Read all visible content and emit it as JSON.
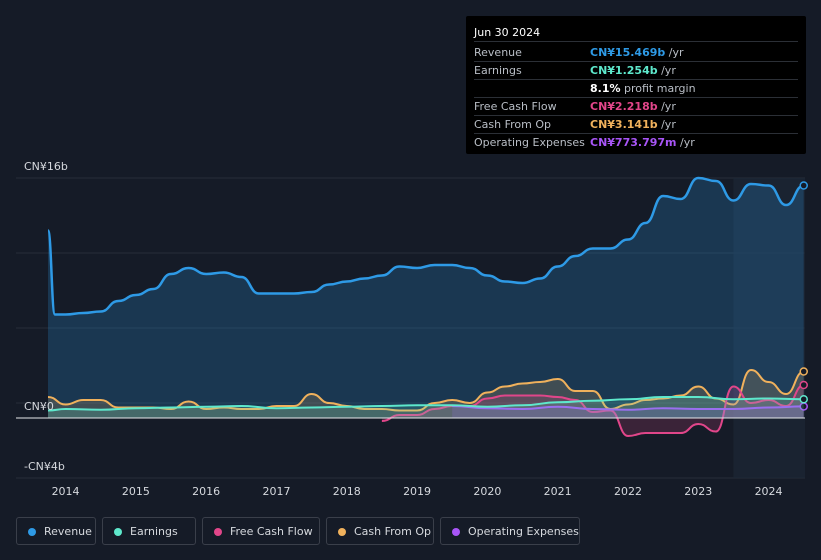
{
  "tooltip": {
    "date": "Jun 30 2024",
    "rows": [
      {
        "label": "Revenue",
        "value": "CN¥15.469b",
        "unit": " /yr",
        "color": "#2e9ae6"
      },
      {
        "label": "Earnings",
        "value": "CN¥1.254b",
        "unit": " /yr",
        "color": "#5ee8cc"
      },
      {
        "label": "",
        "value": "8.1%",
        "unit": " profit margin",
        "color": "#ffffff"
      },
      {
        "label": "Free Cash Flow",
        "value": "CN¥2.218b",
        "unit": " /yr",
        "color": "#e1468a"
      },
      {
        "label": "Cash From Op",
        "value": "CN¥3.141b",
        "unit": " /yr",
        "color": "#f0b15c"
      },
      {
        "label": "Operating Expenses",
        "value": "CN¥773.797m",
        "unit": " /yr",
        "color": "#a855f7"
      }
    ]
  },
  "legend": [
    {
      "label": "Revenue",
      "color": "#2e9ae6"
    },
    {
      "label": "Earnings",
      "color": "#5ee8cc"
    },
    {
      "label": "Free Cash Flow",
      "color": "#e1468a"
    },
    {
      "label": "Cash From Op",
      "color": "#f0b15c"
    },
    {
      "label": "Operating Expenses",
      "color": "#a855f7"
    }
  ],
  "chart_data": {
    "type": "area",
    "title": "",
    "ylim": [
      -4,
      16
    ],
    "y_tick_labels": [
      {
        "label": "CN¥16b",
        "value": 16
      },
      {
        "label": "CN¥0",
        "value": 0
      },
      {
        "label": "-CN¥4b",
        "value": -4
      }
    ],
    "x_range": [
      2013.3,
      2024.5
    ],
    "x_tick_labels": [
      "2014",
      "2015",
      "2016",
      "2017",
      "2018",
      "2019",
      "2020",
      "2021",
      "2022",
      "2023",
      "2024"
    ],
    "x_tick_values": [
      2014,
      2015,
      2016,
      2017,
      2018,
      2019,
      2020,
      2021,
      2022,
      2023,
      2024
    ],
    "forecast_start": 2023.5,
    "series": [
      {
        "name": "Revenue",
        "color": "#2e9ae6",
        "fill": true,
        "x": [
          2013.75,
          2013.85,
          2014.0,
          2014.25,
          2014.5,
          2014.75,
          2015.0,
          2015.25,
          2015.5,
          2015.75,
          2016.0,
          2016.25,
          2016.5,
          2016.75,
          2017.0,
          2017.25,
          2017.5,
          2017.75,
          2018.0,
          2018.25,
          2018.5,
          2018.75,
          2019.0,
          2019.25,
          2019.5,
          2019.75,
          2020.0,
          2020.25,
          2020.5,
          2020.75,
          2021.0,
          2021.25,
          2021.5,
          2021.75,
          2022.0,
          2022.25,
          2022.5,
          2022.75,
          2023.0,
          2023.25,
          2023.5,
          2023.75,
          2024.0,
          2024.25,
          2024.5
        ],
        "values": [
          12.5,
          6.9,
          6.9,
          7.0,
          7.1,
          7.8,
          8.2,
          8.6,
          9.6,
          10.0,
          9.6,
          9.7,
          9.4,
          8.3,
          8.3,
          8.3,
          8.4,
          8.9,
          9.1,
          9.3,
          9.5,
          10.1,
          10.0,
          10.2,
          10.2,
          10.0,
          9.5,
          9.1,
          9.0,
          9.3,
          10.1,
          10.8,
          11.3,
          11.3,
          11.9,
          13.0,
          14.8,
          14.6,
          16.0,
          15.8,
          14.5,
          15.6,
          15.5,
          14.2,
          15.5
        ]
      },
      {
        "name": "Earnings",
        "color": "#5ee8cc",
        "fill": true,
        "x": [
          2013.75,
          2014.0,
          2014.5,
          2015.0,
          2015.5,
          2016.0,
          2016.5,
          2017.0,
          2017.5,
          2018.0,
          2018.5,
          2019.0,
          2019.5,
          2020.0,
          2020.5,
          2021.0,
          2021.5,
          2022.0,
          2022.5,
          2023.0,
          2023.5,
          2024.0,
          2024.5
        ],
        "values": [
          0.5,
          0.6,
          0.55,
          0.65,
          0.7,
          0.75,
          0.8,
          0.65,
          0.7,
          0.75,
          0.8,
          0.85,
          0.85,
          0.75,
          0.85,
          1.05,
          1.15,
          1.25,
          1.4,
          1.4,
          1.25,
          1.3,
          1.25
        ]
      },
      {
        "name": "Free Cash Flow",
        "color": "#e1468a",
        "fill": true,
        "x": [
          2018.5,
          2018.75,
          2019.0,
          2019.25,
          2019.5,
          2019.75,
          2020.0,
          2020.25,
          2020.5,
          2020.75,
          2021.0,
          2021.25,
          2021.5,
          2021.75,
          2022.0,
          2022.25,
          2022.5,
          2022.75,
          2023.0,
          2023.25,
          2023.5,
          2023.75,
          2024.0,
          2024.25,
          2024.5
        ],
        "values": [
          -0.2,
          0.2,
          0.2,
          0.6,
          0.8,
          0.8,
          1.3,
          1.5,
          1.5,
          1.5,
          1.4,
          1.2,
          0.4,
          0.5,
          -1.2,
          -1.0,
          -1.0,
          -1.0,
          -0.4,
          -0.9,
          2.1,
          1.0,
          1.2,
          0.8,
          2.2
        ]
      },
      {
        "name": "Cash From Op",
        "color": "#f0b15c",
        "fill": true,
        "x": [
          2013.75,
          2014.0,
          2014.25,
          2014.5,
          2014.75,
          2015.0,
          2015.25,
          2015.5,
          2015.75,
          2016.0,
          2016.25,
          2016.5,
          2016.75,
          2017.0,
          2017.25,
          2017.5,
          2017.75,
          2018.0,
          2018.25,
          2018.5,
          2018.75,
          2019.0,
          2019.25,
          2019.5,
          2019.75,
          2020.0,
          2020.25,
          2020.5,
          2020.75,
          2021.0,
          2021.25,
          2021.5,
          2021.75,
          2022.0,
          2022.25,
          2022.5,
          2022.75,
          2023.0,
          2023.25,
          2023.5,
          2023.75,
          2024.0,
          2024.25,
          2024.5
        ],
        "values": [
          1.4,
          0.9,
          1.2,
          1.2,
          0.7,
          0.7,
          0.7,
          0.6,
          1.1,
          0.6,
          0.7,
          0.6,
          0.6,
          0.8,
          0.8,
          1.6,
          1.0,
          0.8,
          0.6,
          0.6,
          0.5,
          0.5,
          1.0,
          1.2,
          1.0,
          1.7,
          2.1,
          2.3,
          2.4,
          2.6,
          1.8,
          1.8,
          0.6,
          0.9,
          1.2,
          1.3,
          1.5,
          2.1,
          1.3,
          0.9,
          3.2,
          2.4,
          1.6,
          3.1
        ]
      },
      {
        "name": "Operating Expenses",
        "color": "#a855f7",
        "fill": true,
        "x": [
          2019.5,
          2020.0,
          2020.5,
          2021.0,
          2021.5,
          2022.0,
          2022.5,
          2023.0,
          2023.5,
          2024.0,
          2024.5
        ],
        "values": [
          0.8,
          0.65,
          0.6,
          0.75,
          0.6,
          0.55,
          0.65,
          0.6,
          0.6,
          0.7,
          0.77
        ]
      }
    ]
  }
}
